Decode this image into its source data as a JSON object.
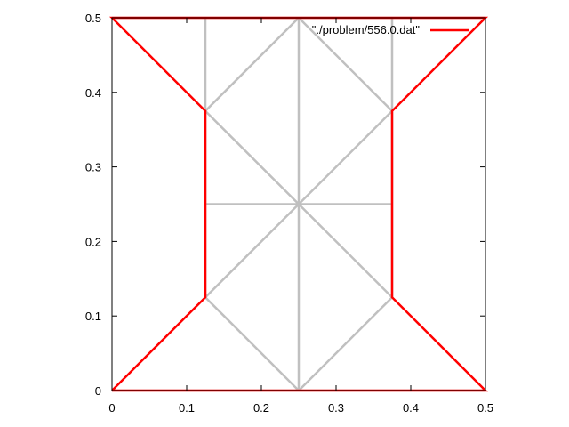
{
  "chart_data": {
    "type": "line",
    "title": "",
    "xlabel": "",
    "ylabel": "",
    "xlim": [
      0,
      0.5
    ],
    "ylim": [
      0,
      0.5
    ],
    "xticks": [
      "0",
      "0.1",
      "0.2",
      "0.3",
      "0.4",
      "0.5"
    ],
    "yticks": [
      "0",
      "0.1",
      "0.2",
      "0.3",
      "0.4",
      "0.5"
    ],
    "grid": false,
    "legend_position": "top-right",
    "mesh_color": "#c0c0c0",
    "series_color": "#ff0000",
    "mesh_lines": [
      [
        [
          0,
          0
        ],
        [
          0.5,
          0
        ]
      ],
      [
        [
          0,
          0.5
        ],
        [
          0.5,
          0.5
        ]
      ],
      [
        [
          0.125,
          0.125
        ],
        [
          0.125,
          0.5
        ]
      ],
      [
        [
          0.25,
          0
        ],
        [
          0.25,
          0.5
        ]
      ],
      [
        [
          0.375,
          0.125
        ],
        [
          0.375,
          0.5
        ]
      ],
      [
        [
          0.125,
          0.25
        ],
        [
          0.375,
          0.25
        ]
      ],
      [
        [
          0.125,
          0.375
        ],
        [
          0.25,
          0.5
        ]
      ],
      [
        [
          0.25,
          0.5
        ],
        [
          0.375,
          0.375
        ]
      ],
      [
        [
          0.125,
          0.375
        ],
        [
          0.375,
          0.125
        ]
      ],
      [
        [
          0.375,
          0.375
        ],
        [
          0.125,
          0.125
        ]
      ],
      [
        [
          0.125,
          0.125
        ],
        [
          0.25,
          0
        ]
      ],
      [
        [
          0.25,
          0
        ],
        [
          0.375,
          0.125
        ]
      ]
    ],
    "series": [
      {
        "name": "\"./problem/556.0.dat\"",
        "points": [
          [
            0,
            0
          ],
          [
            0.125,
            0.125
          ],
          [
            0.125,
            0.375
          ],
          [
            0,
            0.5
          ],
          [
            0.5,
            0.5
          ],
          [
            0.375,
            0.375
          ],
          [
            0.375,
            0.125
          ],
          [
            0.5,
            0
          ],
          [
            0,
            0
          ]
        ]
      }
    ]
  }
}
